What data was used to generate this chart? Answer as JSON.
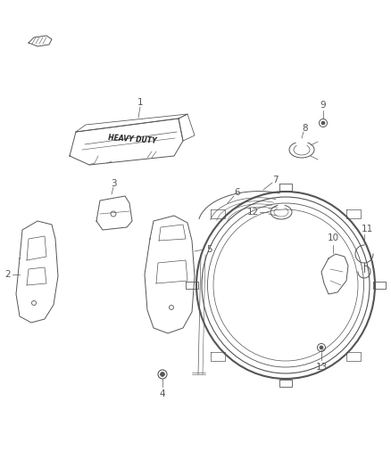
{
  "bg_color": "#ffffff",
  "line_color": "#555555",
  "label_color": "#555555",
  "fig_width": 4.38,
  "fig_height": 5.33,
  "dpi": 100
}
